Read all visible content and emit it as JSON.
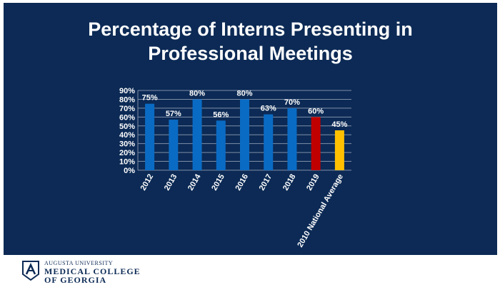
{
  "title_lines": [
    "Percentage of Interns Presenting in",
    "Professional Meetings"
  ],
  "chart_data": {
    "type": "bar",
    "categories": [
      "2012",
      "2013",
      "2014",
      "2015",
      "2016",
      "2017",
      "2018",
      "2019",
      "2010 National Average"
    ],
    "values": [
      75,
      57,
      80,
      56,
      80,
      63,
      70,
      60,
      45
    ],
    "data_labels": [
      "75%",
      "57%",
      "80%",
      "56%",
      "80%",
      "63%",
      "70%",
      "60%",
      "45%"
    ],
    "bar_colors": [
      "#0a6bc4",
      "#0a6bc4",
      "#0a6bc4",
      "#0a6bc4",
      "#0a6bc4",
      "#0a6bc4",
      "#0a6bc4",
      "#c00000",
      "#ffc000"
    ],
    "yticks": [
      "0%",
      "10%",
      "20%",
      "30%",
      "40%",
      "50%",
      "60%",
      "70%",
      "80%",
      "90%"
    ],
    "ylim": [
      0,
      90
    ],
    "grid": true,
    "legend": "none"
  },
  "footer": {
    "logo_line1": "AUGUSTA UNIVERSITY",
    "logo_line2": "MEDICAL COLLEGE",
    "logo_line3": "OF GEORGIA",
    "logo_icon": "augusta-university-seal-icon"
  },
  "colors": {
    "background": "#0c2a55",
    "bar": "#0a6bc4",
    "highlight": "#c00000",
    "benchmark": "#ffc000",
    "grid": "#7f8fa8"
  }
}
